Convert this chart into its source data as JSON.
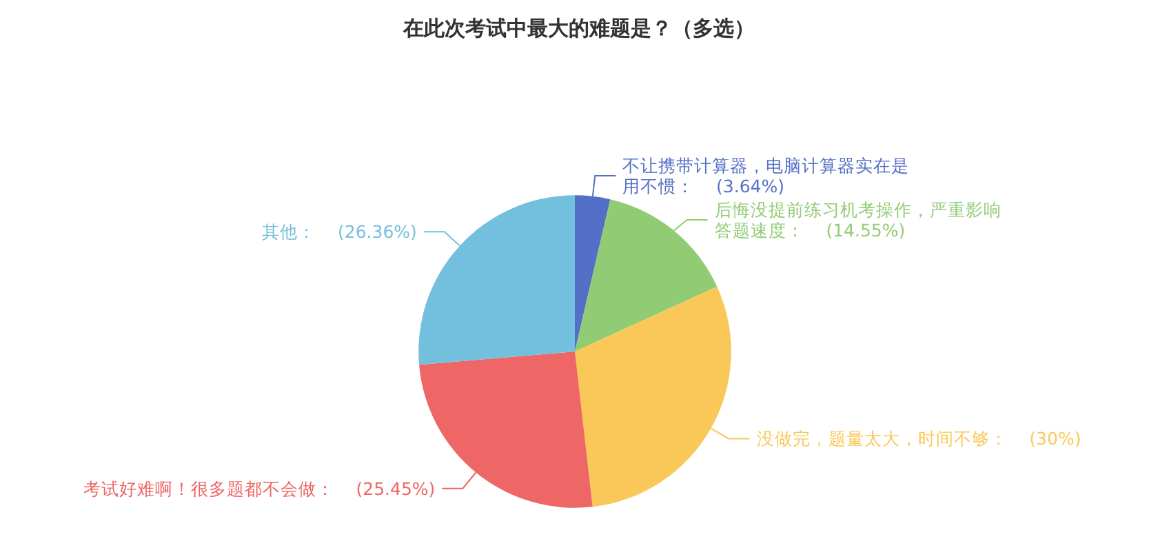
{
  "chart_data": {
    "type": "pie",
    "title": "在此次考试中最大的难题是？（多选）",
    "categories": [
      "不让携带计算器，电脑计算器实在是用不惯",
      "后悔没提前练习机考操作，严重影响答题速度",
      "没做完，题量太大，时间不够",
      "考试好难啊！很多题都不会做",
      "其他"
    ],
    "values": [
      3.64,
      14.55,
      30,
      25.45,
      26.36
    ],
    "value_labels": [
      "(3.64%)",
      "(14.55%)",
      "(30%)",
      "(25.45%)",
      "(26.36%)"
    ],
    "colors": [
      "#5470c6",
      "#91cc75",
      "#fac858",
      "#ee6666",
      "#73c0de"
    ],
    "legend": false
  }
}
